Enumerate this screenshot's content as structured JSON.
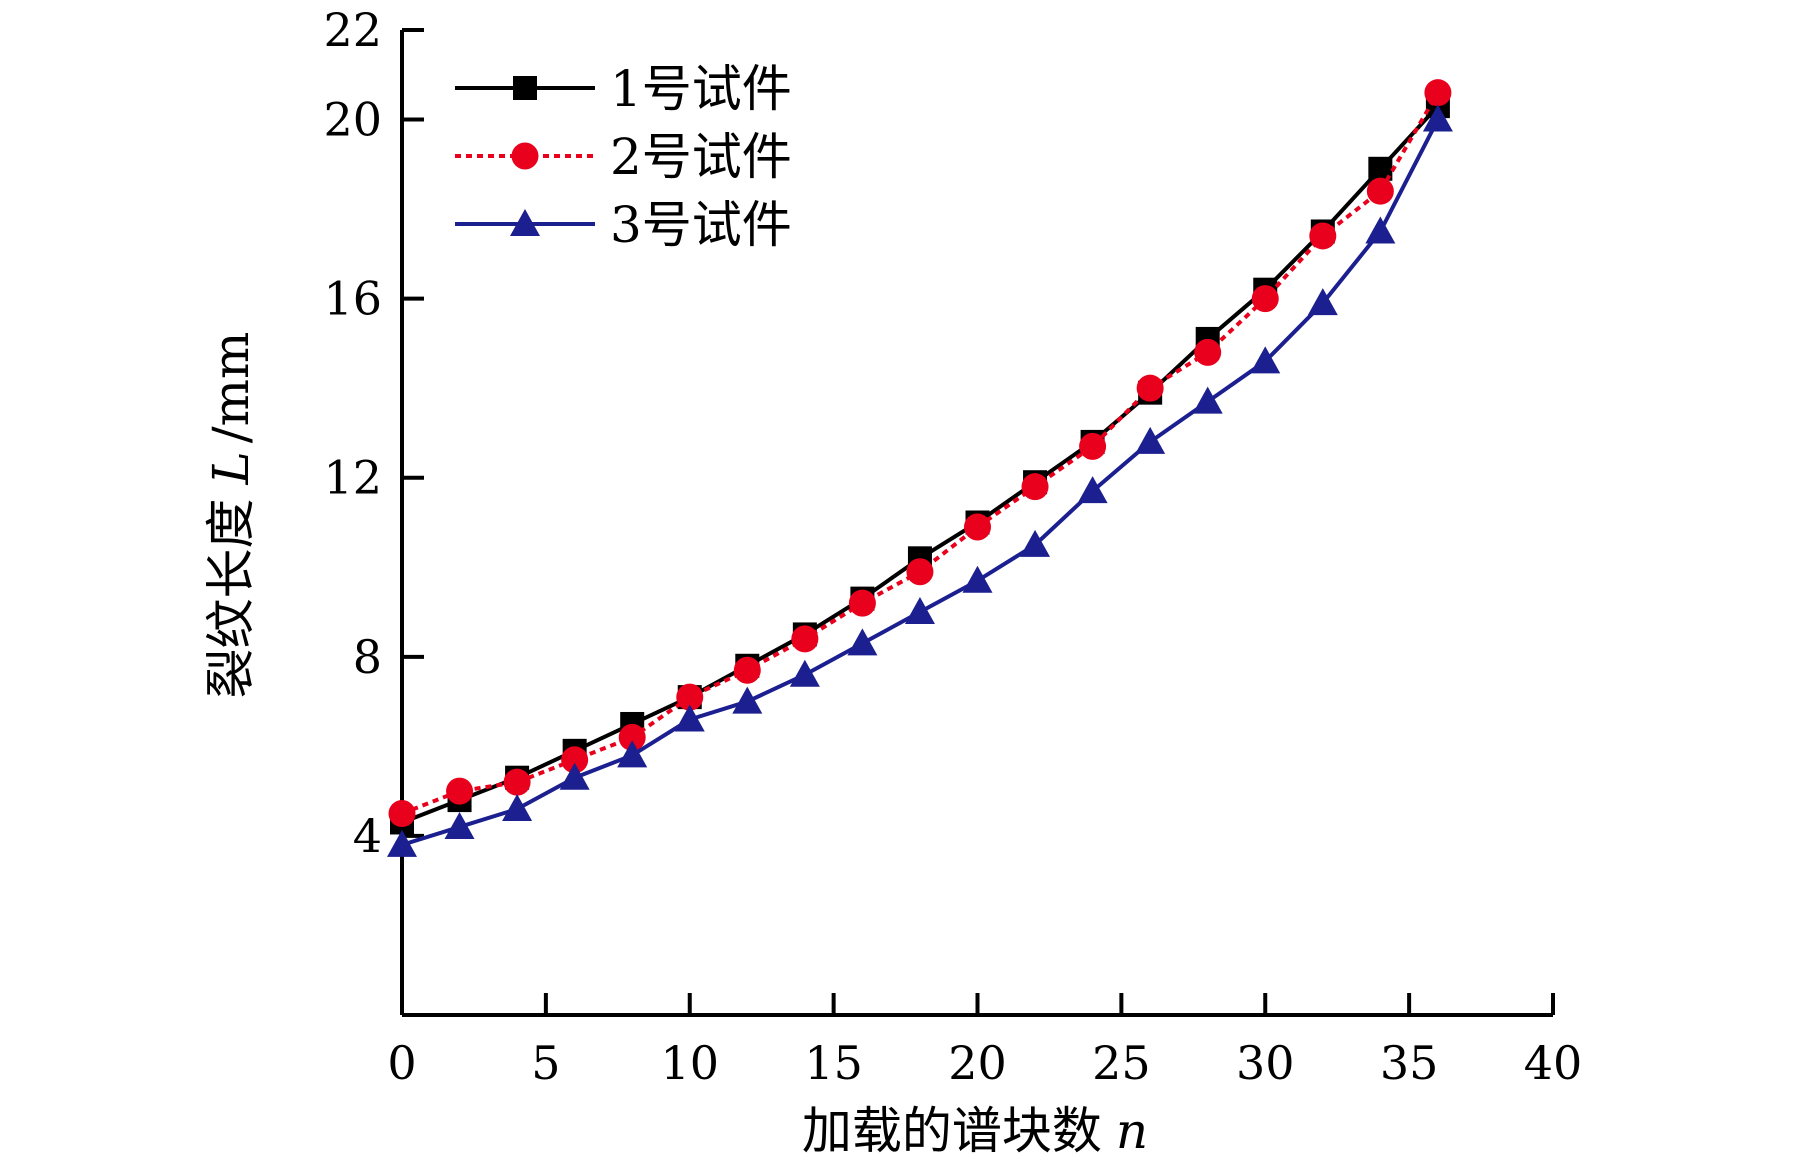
{
  "chart_data": {
    "type": "line",
    "xlabel": "加载的谱块数",
    "xlabel_var": "n",
    "ylabel": "裂纹长度",
    "ylabel_var": "L",
    "ylabel_unit": "/mm",
    "xlim": [
      0,
      40
    ],
    "ylim": [
      0,
      22
    ],
    "xticks": [
      "0",
      "5",
      "10",
      "15",
      "20",
      "25",
      "30",
      "35",
      "40"
    ],
    "yticks": [
      "4",
      "8",
      "12",
      "16",
      "20",
      "22"
    ],
    "ytick_values": [
      4,
      8,
      12,
      16,
      20,
      22
    ],
    "xtick_values": [
      0,
      5,
      10,
      15,
      20,
      25,
      30,
      35,
      40
    ],
    "grid": false,
    "legend_position": "top-left",
    "x": [
      0,
      2,
      4,
      6,
      8,
      10,
      12,
      14,
      16,
      18,
      20,
      22,
      24,
      26,
      28,
      30,
      32,
      34,
      36
    ],
    "series": [
      {
        "name": "1号试件",
        "color": "#000000",
        "marker": "square",
        "line_style": "solid",
        "values": [
          4.3,
          4.8,
          5.3,
          5.9,
          6.5,
          7.1,
          7.8,
          8.5,
          9.3,
          10.2,
          11.0,
          11.9,
          12.8,
          13.9,
          15.1,
          16.2,
          17.5,
          18.9,
          20.3
        ]
      },
      {
        "name": "2号试件",
        "color": "#e8001c",
        "marker": "circle",
        "line_style": "dotted",
        "values": [
          4.5,
          5.0,
          5.2,
          5.7,
          6.2,
          7.1,
          7.7,
          8.4,
          9.2,
          9.9,
          10.9,
          11.8,
          12.7,
          14.0,
          14.8,
          16.0,
          17.4,
          18.4,
          20.6
        ]
      },
      {
        "name": "3号试件",
        "color": "#1b1f8f",
        "marker": "triangle",
        "line_style": "solid",
        "values": [
          3.8,
          4.2,
          4.6,
          5.3,
          5.8,
          6.6,
          7.0,
          7.6,
          8.3,
          9.0,
          9.7,
          10.5,
          11.7,
          12.8,
          13.7,
          14.6,
          15.9,
          17.5,
          20.0
        ]
      }
    ]
  }
}
